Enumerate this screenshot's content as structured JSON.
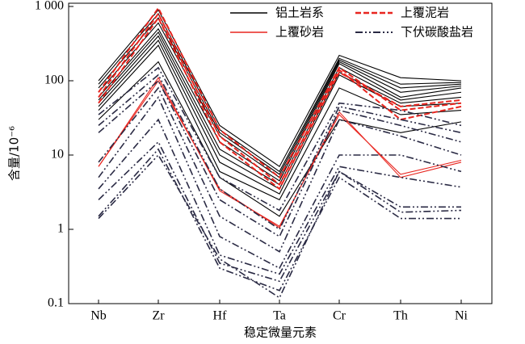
{
  "chart_data": {
    "type": "line",
    "log_y": true,
    "x_label": "稳定微量元素",
    "y_label": "含量/10⁻⁶",
    "categories": [
      "Nb",
      "Zr",
      "Hf",
      "Ta",
      "Cr",
      "Th",
      "Ni"
    ],
    "ylim": [
      0.1,
      1000
    ],
    "yticks": [
      0.1,
      1,
      10,
      100,
      {
        "value": 1000,
        "label": "1 000"
      }
    ],
    "legend": "top",
    "series": [
      {
        "name": "铝土岩系",
        "color": "#000000",
        "linestyle": "solid",
        "lines": [
          [
            100,
            900,
            25,
            7,
            220,
            110,
            100
          ],
          [
            90,
            800,
            22,
            6,
            200,
            90,
            95
          ],
          [
            80,
            700,
            20,
            5.5,
            190,
            80,
            90
          ],
          [
            70,
            600,
            18,
            5,
            180,
            70,
            85
          ],
          [
            60,
            500,
            15,
            4.5,
            170,
            60,
            80
          ],
          [
            55,
            450,
            12,
            4,
            150,
            55,
            70
          ],
          [
            50,
            400,
            10,
            3.5,
            130,
            50,
            60
          ],
          [
            45,
            350,
            8,
            3,
            120,
            45,
            50
          ],
          [
            40,
            300,
            6,
            2.5,
            80,
            35,
            40
          ],
          [
            30,
            180,
            5,
            1.5,
            30,
            20,
            28
          ]
        ]
      },
      {
        "name": "上覆砂岩",
        "color": "#e8251f",
        "linestyle": "solid",
        "lines": [
          [
            7,
            100,
            3.5,
            1.05,
            38,
            5,
            8
          ],
          [
            7,
            110,
            3.3,
            1.1,
            35,
            5.5,
            8.5
          ]
        ]
      },
      {
        "name": "上覆泥岩",
        "color": "#e8251f",
        "linestyle": "dashed",
        "lines": [
          [
            70,
            950,
            22,
            5,
            150,
            40,
            50
          ],
          [
            60,
            800,
            18,
            4,
            140,
            30,
            45
          ],
          [
            50,
            700,
            15,
            3.5,
            130,
            45,
            55
          ]
        ]
      },
      {
        "name": "下伏碳酸盐岩",
        "color": "#2a2a44",
        "linestyle": "dashdot",
        "lines": [
          [
            35,
            150,
            5,
            1.8,
            50,
            40,
            25
          ],
          [
            25,
            120,
            3.5,
            1,
            45,
            30,
            20
          ],
          [
            20,
            100,
            2.5,
            0.8,
            40,
            25,
            15
          ],
          [
            8,
            80,
            1.5,
            0.5,
            30,
            18,
            10
          ],
          [
            5,
            60,
            0.8,
            0.3,
            10,
            10,
            6
          ],
          [
            3.5,
            30,
            0.45,
            0.25,
            7,
            5,
            3.7
          ],
          [
            2.5,
            15,
            0.35,
            0.2,
            6,
            2,
            2
          ],
          [
            1.5,
            12,
            0.3,
            0.15,
            5,
            1.4,
            1.4
          ],
          [
            1.4,
            10,
            0.4,
            0.12,
            6,
            1.7,
            1.8
          ]
        ]
      }
    ]
  }
}
